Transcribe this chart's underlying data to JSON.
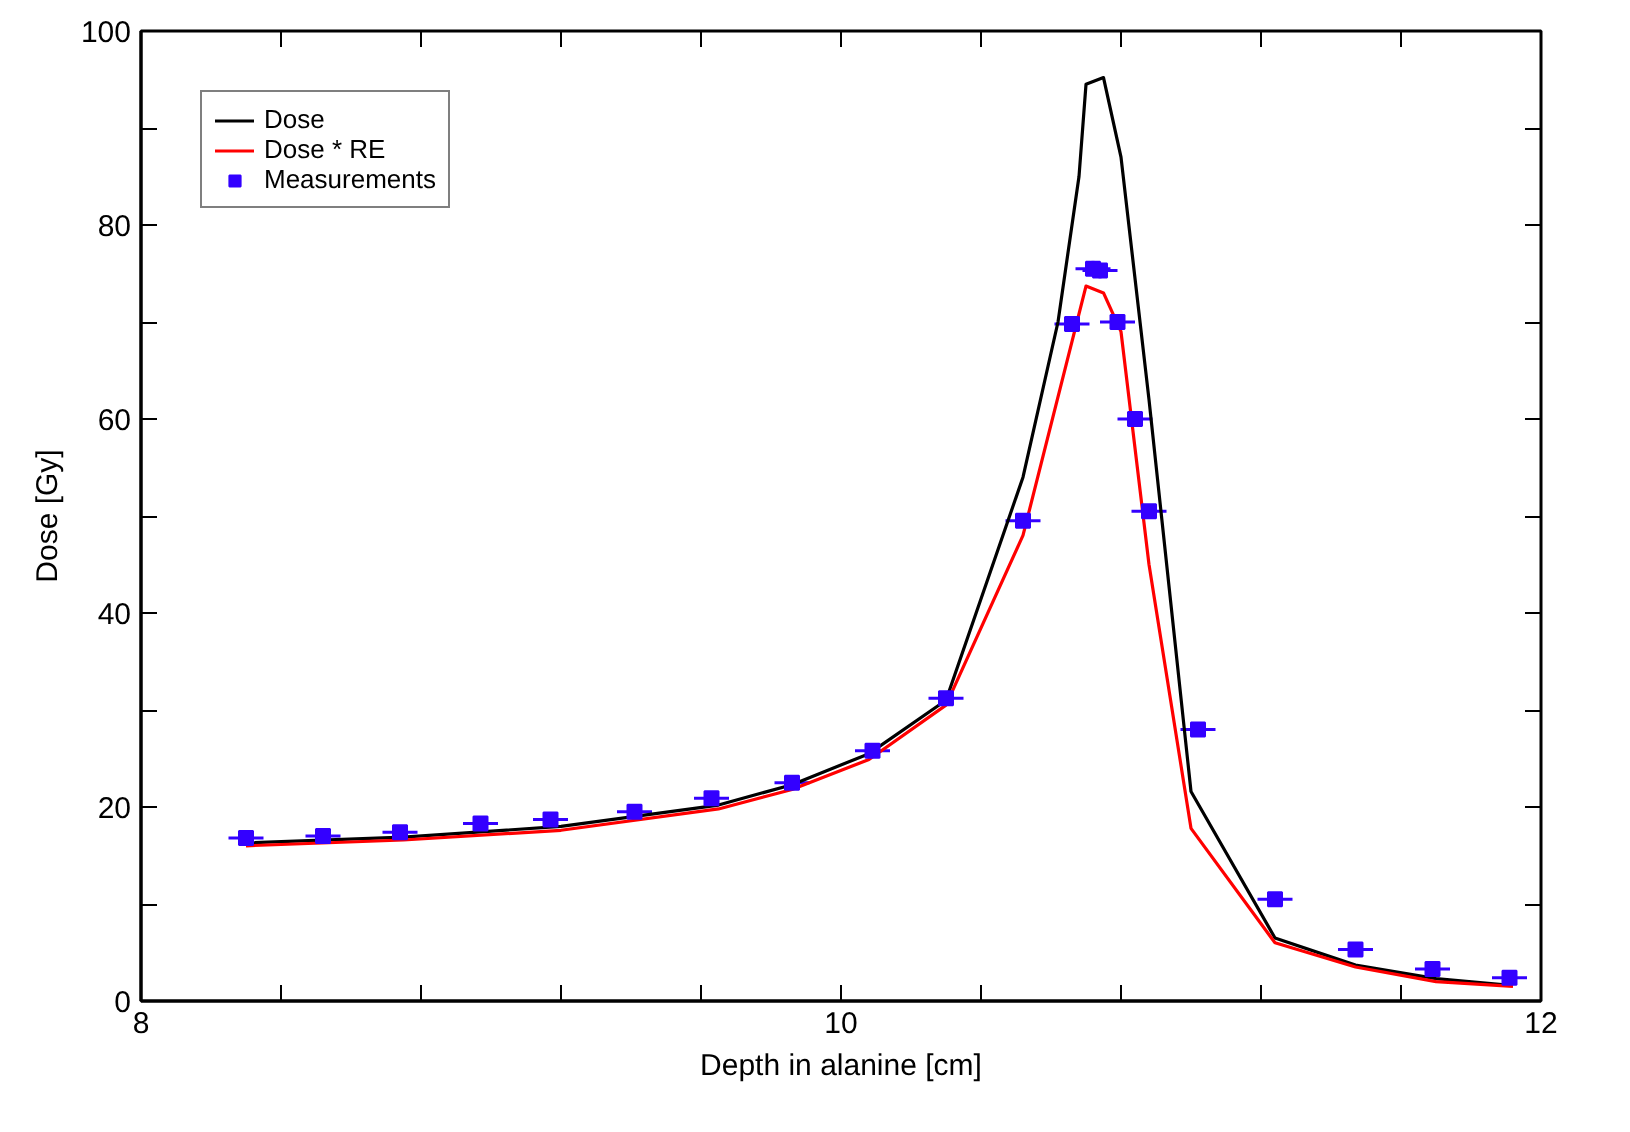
{
  "chart_data": {
    "type": "line",
    "xlabel": "Depth in alanine [cm]",
    "ylabel": "Dose [Gy]",
    "xlim": [
      8,
      12
    ],
    "ylim": [
      0,
      100
    ],
    "xticks": [
      8,
      {
        "value": 8.4,
        "label": null
      },
      {
        "value": 8.8,
        "label": null
      },
      {
        "value": 9.2,
        "label": null
      },
      {
        "value": 9.6,
        "label": null
      },
      10,
      {
        "value": 10.4,
        "label": null
      },
      {
        "value": 10.8,
        "label": null
      },
      {
        "value": 11.2,
        "label": null
      },
      {
        "value": 11.6,
        "label": null
      },
      12
    ],
    "yticks": [
      0,
      {
        "value": 10,
        "label": null
      },
      20,
      {
        "value": 30,
        "label": null
      },
      40,
      {
        "value": 50,
        "label": null
      },
      60,
      {
        "value": 70,
        "label": null
      },
      80,
      {
        "value": 90,
        "label": null
      },
      100
    ],
    "grid": false,
    "legend": "top left",
    "series": [
      {
        "name": "Dose",
        "color": "#000000",
        "line_style": "solid",
        "marker": "none",
        "x": [
          8.3,
          8.75,
          9.2,
          9.65,
          9.86,
          10.08,
          10.3,
          10.52,
          10.62,
          10.68,
          10.7,
          10.75,
          10.8,
          10.88,
          11.0,
          11.24,
          11.47,
          11.7,
          11.92
        ],
        "values": [
          16.3,
          16.9,
          18.0,
          20.2,
          22.3,
          25.5,
          31.0,
          54,
          70,
          85,
          94.5,
          95.2,
          87,
          62,
          21.6,
          6.5,
          3.7,
          2.3,
          1.6
        ]
      },
      {
        "name": "Dose * RE",
        "color": "#ff0000",
        "line_style": "solid",
        "marker": "none",
        "x": [
          8.3,
          8.75,
          9.2,
          9.65,
          9.86,
          10.08,
          10.3,
          10.52,
          10.7,
          10.75,
          10.8,
          10.88,
          11.0,
          11.24,
          11.47,
          11.7,
          11.92
        ],
        "values": [
          16.0,
          16.6,
          17.6,
          19.8,
          21.8,
          24.9,
          30.5,
          48,
          73.7,
          73.0,
          69,
          45,
          17.8,
          6.0,
          3.5,
          2.0,
          1.5
        ]
      },
      {
        "name": "Measurements",
        "type": "scatter",
        "color": "#3300ff",
        "marker": "square",
        "x": [
          8.3,
          8.52,
          8.74,
          8.97,
          9.17,
          9.41,
          9.63,
          9.86,
          10.09,
          10.3,
          10.52,
          10.66,
          10.72,
          10.74,
          10.79,
          10.84,
          10.88,
          11.02,
          11.24,
          11.47,
          11.69,
          11.91
        ],
        "values": [
          16.8,
          17.0,
          17.4,
          18.3,
          18.7,
          19.5,
          20.9,
          22.5,
          25.8,
          31.2,
          49.5,
          69.8,
          75.5,
          75.3,
          70.0,
          60.0,
          50.5,
          28.0,
          10.5,
          5.3,
          3.3,
          2.4
        ],
        "errors": [
          0.5,
          0.5,
          0.5,
          0.5,
          0.5,
          0.5,
          0.5,
          0.5,
          0.5,
          0.5,
          0.5,
          0.8,
          0.8,
          0.8,
          0.8,
          0.8,
          0.5,
          0.5,
          0.5,
          0.5,
          0.5,
          0.5
        ],
        "xerrors": [
          0.05,
          0.05,
          0.05,
          0.05,
          0.05,
          0.05,
          0.05,
          0.05,
          0.05,
          0.05,
          0.05,
          0.05,
          0.05,
          0.05,
          0.05,
          0.05,
          0.05,
          0.05,
          0.05,
          0.05,
          0.05,
          0.05
        ]
      }
    ]
  }
}
